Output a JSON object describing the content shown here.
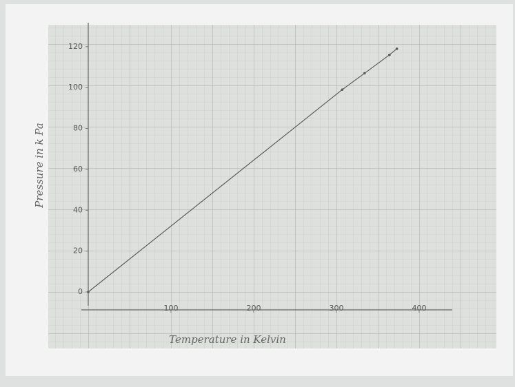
{
  "chart_data": {
    "type": "line",
    "x_label": "Temperature in Kelvin",
    "y_label": "Pressure in k Pa",
    "x": [
      0,
      307,
      334,
      364,
      373
    ],
    "values": [
      0,
      99,
      107,
      116,
      119
    ],
    "color": "#5a5a5a",
    "xlim": [
      0,
      440
    ],
    "xticks": [
      100,
      200,
      300,
      400
    ],
    "ylim": [
      0,
      125
    ],
    "yticks": [
      0,
      20,
      40,
      60,
      80,
      100,
      120
    ],
    "grid": true
  }
}
